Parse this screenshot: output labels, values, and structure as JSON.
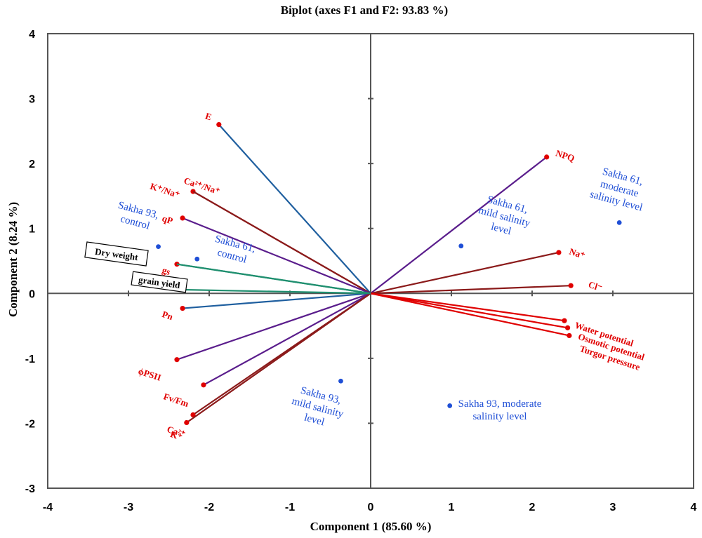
{
  "chart_data": {
    "type": "scatter",
    "subtype": "pca-biplot",
    "title": "Biplot (axes F1 and F2: 93.83 %)",
    "xlabel": "Component  1 (85.60 %)",
    "ylabel": "Component  2 (8.24 %)",
    "xlim": [
      -4,
      4
    ],
    "ylim": [
      -3,
      4
    ],
    "xticks": [
      "-4",
      "-3",
      "-2",
      "-1",
      "0",
      "1",
      "2",
      "3",
      "4"
    ],
    "yticks": [
      "-3",
      "-2",
      "-1",
      "0",
      "1",
      "2",
      "3",
      "4"
    ],
    "grid": false,
    "variables": [
      {
        "name": "E",
        "label": "E",
        "x": -1.88,
        "y": 2.6,
        "line_color": "#1f5f9f"
      },
      {
        "name": "NPQ",
        "label": "NPQ",
        "x": 2.18,
        "y": 2.1,
        "line_color": "#5a1d8c"
      },
      {
        "name": "Ca2+/Na+",
        "label": "Ca²⁺/Na⁺",
        "x": -2.2,
        "y": 1.57,
        "line_color": "#8b1a1a"
      },
      {
        "name": "K+/Na+",
        "label": "K⁺/Na⁺",
        "x": -2.2,
        "y": 1.57,
        "line_color": "#8b1a1a"
      },
      {
        "name": "qP",
        "label": "qP",
        "x": -2.33,
        "y": 1.16,
        "line_color": "#5a1d8c"
      },
      {
        "name": "Na+",
        "label": "Na⁺",
        "x": 2.33,
        "y": 0.63,
        "line_color": "#8b1a1a"
      },
      {
        "name": "gs",
        "label": "gs",
        "x": -2.4,
        "y": 0.45,
        "line_color": "#1f8f6f"
      },
      {
        "name": "Cl-",
        "label": "Cl⁻",
        "x": 2.48,
        "y": 0.12,
        "line_color": "#8b1a1a"
      },
      {
        "name": "Pn",
        "label": "Pn",
        "x": -2.33,
        "y": -0.23,
        "line_color": "#1f5f9f"
      },
      {
        "name": "Water potential",
        "label": "Water potential",
        "x": 2.4,
        "y": -0.42,
        "line_color": "#e00000"
      },
      {
        "name": "Osmotic potential",
        "label": "Osmotic potential",
        "x": 2.44,
        "y": -0.53,
        "line_color": "#e00000"
      },
      {
        "name": "Turgor pressure",
        "label": "Turgor pressure",
        "x": 2.46,
        "y": -0.65,
        "line_color": "#e00000"
      },
      {
        "name": "phiPSII",
        "label": "ϕPSII",
        "x": -2.4,
        "y": -1.02,
        "line_color": "#5a1d8c"
      },
      {
        "name": "Fv/Fm",
        "label": "Fv/Fm",
        "x": -2.07,
        "y": -1.41,
        "line_color": "#5a1d8c"
      },
      {
        "name": "Ca2+",
        "label": "Ca²⁺",
        "x": -2.2,
        "y": -1.87,
        "line_color": "#8b1a1a"
      },
      {
        "name": "K+",
        "label": "K⁺",
        "x": -2.28,
        "y": -1.99,
        "line_color": "#8b1a1a"
      },
      {
        "name": "Dry weight",
        "label": "Dry weight",
        "x": -2.4,
        "y": 0.45,
        "line_color": "#1f8f6f"
      },
      {
        "name": "grain yield",
        "label": "grain yield",
        "x": -2.46,
        "y": 0.06,
        "line_color": "#1f8f6f"
      }
    ],
    "observations": [
      {
        "name": "Sakha 93, control",
        "label_lines": [
          "Sakha 93,",
          "control"
        ],
        "x": -2.63,
        "y": 0.72
      },
      {
        "name": "Sakha 61, control",
        "label_lines": [
          "Sakha 61,",
          "control"
        ],
        "x": -2.15,
        "y": 0.53
      },
      {
        "name": "Sakha 61, mild salinity level",
        "label_lines": [
          "Sakha 61,",
          "mild salinity",
          "level"
        ],
        "x": 1.12,
        "y": 0.73
      },
      {
        "name": "Sakha 61, moderate salinity level",
        "label_lines": [
          "Sakha 61,",
          "moderate",
          "salinity level"
        ],
        "x": 3.08,
        "y": 1.09
      },
      {
        "name": "Sakha 93, mild salinity level",
        "label_lines": [
          "Sakha 93,",
          "mild salinity",
          "level"
        ],
        "x": -0.37,
        "y": -1.35
      },
      {
        "name": "Sakha 93, moderate salinity level",
        "label_lines": [
          "Sakha 93, moderate",
          "salinity level"
        ],
        "x": 0.98,
        "y": -1.73
      }
    ]
  },
  "colors": {
    "variable_point": "#e00000",
    "variable_label": "#e00000",
    "observation": "#1f4fd6",
    "axis": "#555555"
  }
}
